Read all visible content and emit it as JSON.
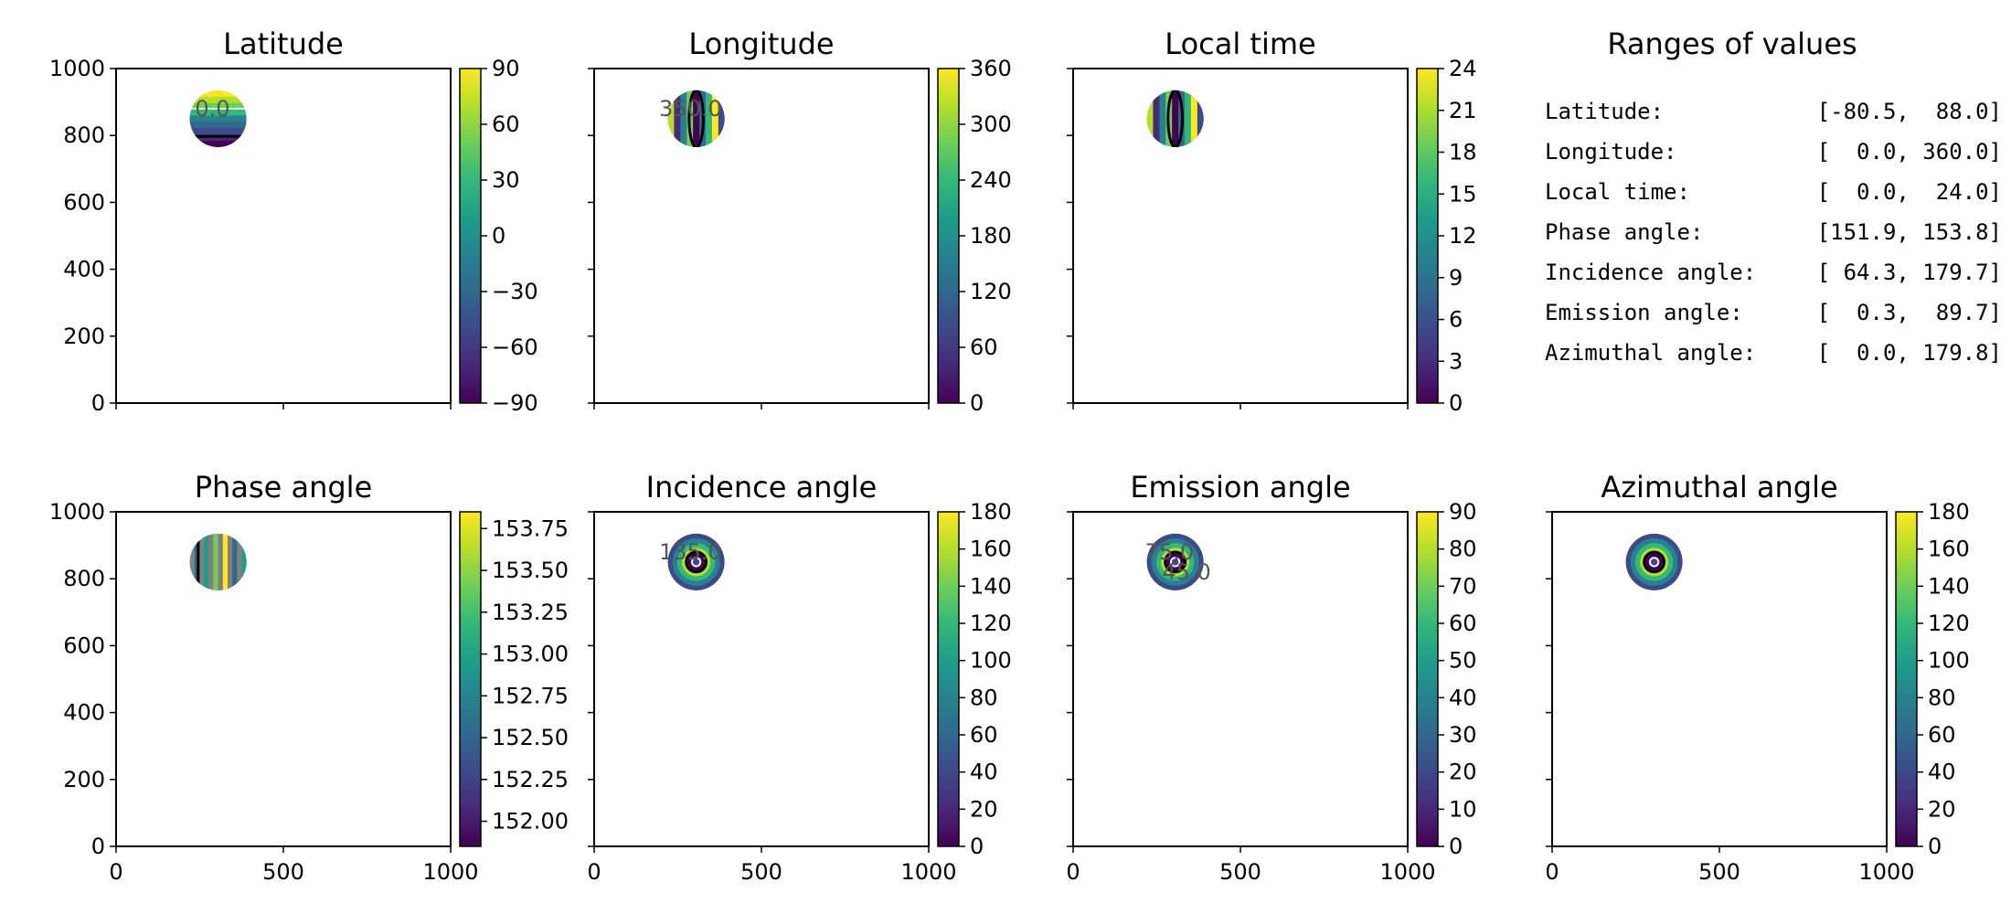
{
  "xticks": [
    "0",
    "500",
    "1000"
  ],
  "yticks": [
    "0",
    "200",
    "400",
    "600",
    "800",
    "1000"
  ],
  "colors": {
    "viridis": [
      "#440154",
      "#482878",
      "#3e4989",
      "#31688e",
      "#26828e",
      "#1f9e89",
      "#35b779",
      "#6ece58",
      "#b5de2b",
      "#fde725"
    ],
    "ring_dark": "#000000",
    "ring_light": "#ffffff",
    "ring_gray": "#808080"
  },
  "chart_data": [
    {
      "type": "heatmap",
      "title": "Latitude",
      "xlim": [
        0,
        1000
      ],
      "ylim": [
        0,
        1000
      ],
      "disk": {
        "cx": 305,
        "cy": 850,
        "r": 85
      },
      "pattern": "horizontal",
      "value_range": [
        -80.5,
        88.0
      ],
      "colorbar": {
        "min": -90,
        "max": 90,
        "ticks": [
          "90",
          "60",
          "30",
          "0",
          "−30",
          "−60",
          "−90"
        ]
      },
      "contour_labels": [
        "0.0"
      ],
      "show_xticklabels": false,
      "show_yticklabels": true
    },
    {
      "type": "heatmap",
      "title": "Longitude",
      "xlim": [
        0,
        1000
      ],
      "ylim": [
        0,
        1000
      ],
      "disk": {
        "cx": 305,
        "cy": 850,
        "r": 85
      },
      "pattern": "vertical",
      "value_range": [
        0.0,
        360.0
      ],
      "colorbar": {
        "min": 0,
        "max": 360,
        "ticks": [
          "360",
          "300",
          "240",
          "180",
          "120",
          "60",
          "0"
        ]
      },
      "contour_labels": [
        "350.0"
      ],
      "show_xticklabels": false,
      "show_yticklabels": false
    },
    {
      "type": "heatmap",
      "title": "Local time",
      "xlim": [
        0,
        1000
      ],
      "ylim": [
        0,
        1000
      ],
      "disk": {
        "cx": 305,
        "cy": 850,
        "r": 85
      },
      "pattern": "vertical",
      "value_range": [
        0.0,
        24.0
      ],
      "colorbar": {
        "min": 0,
        "max": 24,
        "ticks": [
          "24",
          "21",
          "18",
          "15",
          "12",
          "9",
          "6",
          "3",
          "0"
        ]
      },
      "contour_labels": [],
      "show_xticklabels": false,
      "show_yticklabels": false
    },
    {
      "type": "heatmap",
      "title": "Phase angle",
      "xlim": [
        0,
        1000
      ],
      "ylim": [
        0,
        1000
      ],
      "disk": {
        "cx": 305,
        "cy": 850,
        "r": 85
      },
      "pattern": "stripes",
      "value_range": [
        151.9,
        153.8
      ],
      "colorbar": {
        "min": 151.85,
        "max": 153.85,
        "ticks": [
          "153.75",
          "153.50",
          "153.25",
          "153.00",
          "152.75",
          "152.50",
          "152.25",
          "152.00"
        ]
      },
      "contour_labels": [],
      "show_xticklabels": true,
      "show_yticklabels": true
    },
    {
      "type": "heatmap",
      "title": "Incidence angle",
      "xlim": [
        0,
        1000
      ],
      "ylim": [
        0,
        1000
      ],
      "disk": {
        "cx": 305,
        "cy": 850,
        "r": 85
      },
      "pattern": "radial",
      "value_range": [
        64.3,
        179.7
      ],
      "colorbar": {
        "min": 0,
        "max": 180,
        "ticks": [
          "180",
          "160",
          "140",
          "120",
          "100",
          "80",
          "60",
          "40",
          "20",
          "0"
        ]
      },
      "contour_labels": [
        "135.0"
      ],
      "show_xticklabels": true,
      "show_yticklabels": false
    },
    {
      "type": "heatmap",
      "title": "Emission angle",
      "xlim": [
        0,
        1000
      ],
      "ylim": [
        0,
        1000
      ],
      "disk": {
        "cx": 305,
        "cy": 850,
        "r": 85
      },
      "pattern": "radial",
      "value_range": [
        0.3,
        89.7
      ],
      "colorbar": {
        "min": 0,
        "max": 90,
        "ticks": [
          "90",
          "80",
          "70",
          "60",
          "50",
          "40",
          "30",
          "20",
          "10",
          "0"
        ]
      },
      "contour_labels": [
        "75.0",
        "45.0"
      ],
      "show_xticklabels": true,
      "show_yticklabels": false
    },
    {
      "type": "heatmap",
      "title": "Azimuthal angle",
      "xlim": [
        0,
        1000
      ],
      "ylim": [
        0,
        1000
      ],
      "disk": {
        "cx": 305,
        "cy": 850,
        "r": 85
      },
      "pattern": "radial",
      "value_range": [
        0.0,
        179.8
      ],
      "colorbar": {
        "min": 0,
        "max": 180,
        "ticks": [
          "180",
          "160",
          "140",
          "120",
          "100",
          "80",
          "60",
          "40",
          "20",
          "0"
        ]
      },
      "contour_labels": [],
      "show_xticklabels": true,
      "show_yticklabels": false
    }
  ],
  "ranges_panel": {
    "title": "Ranges of values",
    "rows": [
      {
        "label": "Latitude:",
        "value": "[-80.5,  88.0]"
      },
      {
        "label": "Longitude:",
        "value": "[  0.0, 360.0]"
      },
      {
        "label": "Local time:",
        "value": "[  0.0,  24.0]"
      },
      {
        "label": "Phase angle:",
        "value": "[151.9, 153.8]"
      },
      {
        "label": "Incidence angle:",
        "value": "[ 64.3, 179.7]"
      },
      {
        "label": "Emission angle:",
        "value": "[  0.3,  89.7]"
      },
      {
        "label": "Azimuthal angle:",
        "value": "[  0.0, 179.8]"
      }
    ]
  }
}
